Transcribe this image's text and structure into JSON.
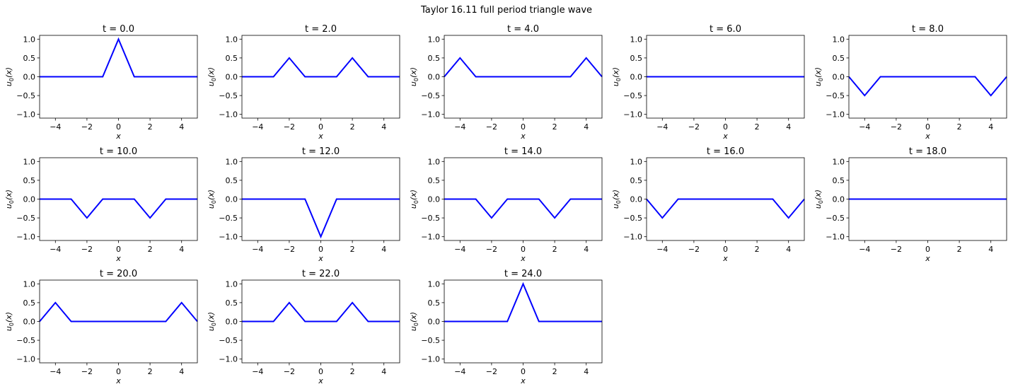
{
  "suptitle": "Taylor 16.11 full period triangle wave",
  "chart_data": {
    "type": "line",
    "title": "Taylor 16.11 full period triangle wave",
    "xlabel": "x",
    "ylabel": "u0(x)",
    "ylabel_main": "u",
    "ylabel_sub": "0",
    "ylabel_tail": "(x)",
    "xlim": [
      -5,
      5
    ],
    "ylim": [
      -1.1,
      1.1
    ],
    "xticks": [
      -4,
      -2,
      0,
      2,
      4
    ],
    "xtick_labels": [
      "−4",
      "−2",
      "0",
      "2",
      "4"
    ],
    "yticks": [
      1.0,
      0.5,
      0.0,
      -0.5,
      -1.0
    ],
    "ytick_labels": [
      "1.0",
      "0.5",
      "0.0",
      "−0.5",
      "−1.0"
    ],
    "line_color": "#0000ff",
    "grid": false,
    "panels": [
      {
        "title": "t = 0.0",
        "x": [
          -5,
          -1,
          0,
          1,
          5
        ],
        "y": [
          0,
          0,
          1,
          0,
          0
        ]
      },
      {
        "title": "t = 2.0",
        "x": [
          -5,
          -3,
          -2,
          -1,
          1,
          2,
          3,
          5
        ],
        "y": [
          0,
          0,
          0.5,
          0,
          0,
          0.5,
          0,
          0
        ]
      },
      {
        "title": "t = 4.0",
        "x": [
          -5,
          -4,
          -3,
          3,
          4,
          5
        ],
        "y": [
          0,
          0.5,
          0,
          0,
          0.5,
          0
        ]
      },
      {
        "title": "t = 6.0",
        "x": [
          -5,
          5
        ],
        "y": [
          0,
          0
        ]
      },
      {
        "title": "t = 8.0",
        "x": [
          -5,
          -4,
          -3,
          3,
          4,
          5
        ],
        "y": [
          0,
          -0.5,
          0,
          0,
          -0.5,
          0
        ]
      },
      {
        "title": "t = 10.0",
        "x": [
          -5,
          -3,
          -2,
          -1,
          1,
          2,
          3,
          5
        ],
        "y": [
          0,
          0,
          -0.5,
          0,
          0,
          -0.5,
          0,
          0
        ]
      },
      {
        "title": "t = 12.0",
        "x": [
          -5,
          -1,
          0,
          1,
          5
        ],
        "y": [
          0,
          0,
          -1,
          0,
          0
        ]
      },
      {
        "title": "t = 14.0",
        "x": [
          -5,
          -3,
          -2,
          -1,
          1,
          2,
          3,
          5
        ],
        "y": [
          0,
          0,
          -0.5,
          0,
          0,
          -0.5,
          0,
          0
        ]
      },
      {
        "title": "t = 16.0",
        "x": [
          -5,
          -4,
          -3,
          3,
          4,
          5
        ],
        "y": [
          0,
          -0.5,
          0,
          0,
          -0.5,
          0
        ]
      },
      {
        "title": "t = 18.0",
        "x": [
          -5,
          5
        ],
        "y": [
          0,
          0
        ]
      },
      {
        "title": "t = 20.0",
        "x": [
          -5,
          -4,
          -3,
          3,
          4,
          5
        ],
        "y": [
          0,
          0.5,
          0,
          0,
          0.5,
          0
        ]
      },
      {
        "title": "t = 22.0",
        "x": [
          -5,
          -3,
          -2,
          -1,
          1,
          2,
          3,
          5
        ],
        "y": [
          0,
          0,
          0.5,
          0,
          0,
          0.5,
          0,
          0
        ]
      },
      {
        "title": "t = 24.0",
        "x": [
          -5,
          -1,
          0,
          1,
          5
        ],
        "y": [
          0,
          0,
          1,
          0,
          0
        ]
      }
    ]
  }
}
